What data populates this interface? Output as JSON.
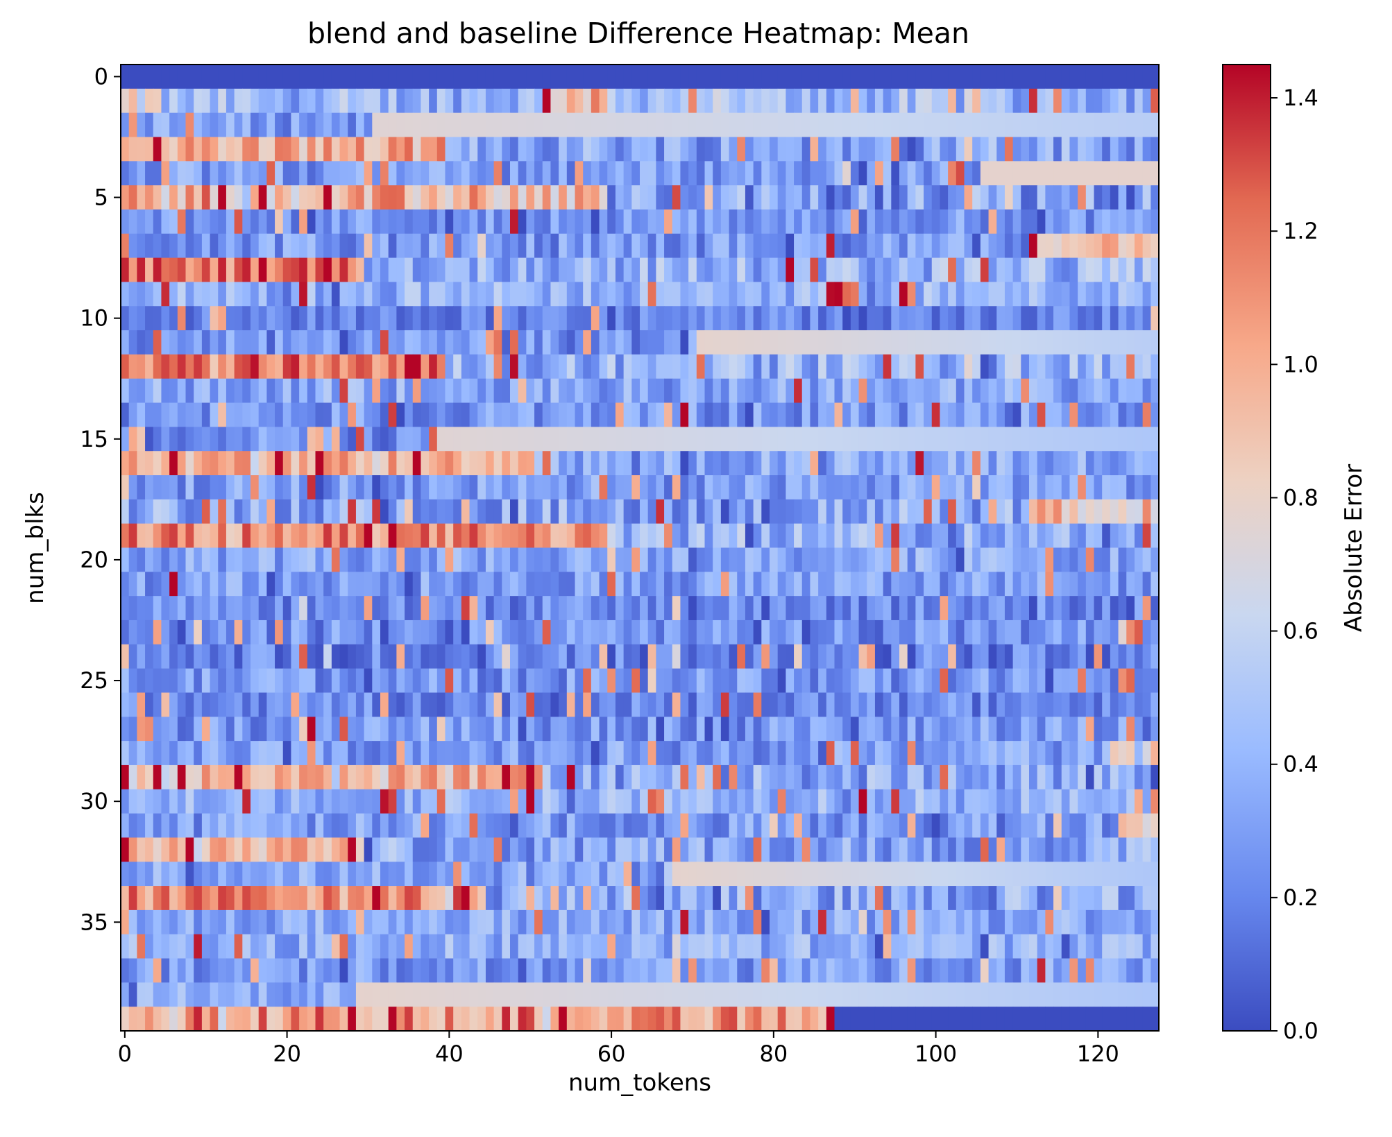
{
  "chart_data": {
    "type": "heatmap",
    "title": "blend and baseline Difference Heatmap: Mean",
    "xlabel": "num_tokens",
    "ylabel": "num_blks",
    "colorbar_label": "Absolute Error",
    "colormap": "coolwarm",
    "colormap_stops": [
      "#3b4cc0",
      "#6788ee",
      "#9abbff",
      "#c9d7f0",
      "#edd1c2",
      "#f7a889",
      "#e26952",
      "#b40426"
    ],
    "n_rows": 40,
    "n_cols": 128,
    "xticks": [
      0,
      20,
      40,
      60,
      80,
      100,
      120
    ],
    "yticks": [
      0,
      5,
      10,
      15,
      20,
      25,
      30,
      35
    ],
    "xticklabels": [
      "0",
      "20",
      "40",
      "60",
      "80",
      "100",
      "120"
    ],
    "yticklabels": [
      "0",
      "5",
      "10",
      "15",
      "20",
      "25",
      "30",
      "35"
    ],
    "colorbar_ticks": [
      "0.0",
      "0.2",
      "0.4",
      "0.6",
      "0.8",
      "1.0",
      "1.2",
      "1.4"
    ],
    "value_range": [
      0.0,
      1.45
    ],
    "grid": false,
    "rows": [
      {
        "row": 0,
        "base": 0.0,
        "noise": 0.0,
        "pattern": "constant"
      },
      {
        "row": 1,
        "base": 0.42,
        "noise": 0.25,
        "hot": [
          [
            0,
            5,
            0.7
          ],
          [
            52,
            60,
            0.95
          ],
          [
            60,
            80,
            0.5
          ],
          [
            104,
            106,
            0.9
          ]
        ]
      },
      {
        "row": 2,
        "base": 0.3,
        "noise": 0.2,
        "fill_from": 31,
        "fill_start": 0.75,
        "fill_end": 0.55
      },
      {
        "row": 3,
        "base": 1.0,
        "noise": 0.25,
        "hot": [
          [
            40,
            128,
            0.35
          ]
        ]
      },
      {
        "row": 4,
        "base": 0.3,
        "noise": 0.2,
        "fill_from": 106,
        "fill_start": 0.78,
        "fill_end": 0.78
      },
      {
        "row": 5,
        "base": 0.95,
        "noise": 0.3,
        "hot": [
          [
            60,
            128,
            0.3
          ]
        ]
      },
      {
        "row": 6,
        "base": 0.28,
        "noise": 0.18
      },
      {
        "row": 7,
        "base": 0.28,
        "noise": 0.2,
        "hot": [
          [
            112,
            128,
            0.95
          ]
        ]
      },
      {
        "row": 8,
        "base": 1.15,
        "noise": 0.25,
        "hot": [
          [
            30,
            128,
            0.4
          ]
        ]
      },
      {
        "row": 9,
        "base": 0.4,
        "noise": 0.2
      },
      {
        "row": 10,
        "base": 0.2,
        "noise": 0.15
      },
      {
        "row": 11,
        "base": 0.25,
        "noise": 0.2,
        "fill_from": 71,
        "fill_start": 0.78,
        "fill_end": 0.55
      },
      {
        "row": 12,
        "base": 1.2,
        "noise": 0.25,
        "hot": [
          [
            40,
            128,
            0.4
          ]
        ]
      },
      {
        "row": 13,
        "base": 0.35,
        "noise": 0.2
      },
      {
        "row": 14,
        "base": 0.28,
        "noise": 0.2,
        "spike": [
          69,
          1.45
        ]
      },
      {
        "row": 15,
        "base": 0.25,
        "noise": 0.2,
        "fill_from": 39,
        "fill_start": 0.75,
        "fill_end": 0.5
      },
      {
        "row": 16,
        "base": 1.0,
        "noise": 0.2,
        "hot": [
          [
            50,
            128,
            0.35
          ]
        ]
      },
      {
        "row": 17,
        "base": 0.3,
        "noise": 0.2
      },
      {
        "row": 18,
        "base": 0.35,
        "noise": 0.25,
        "hot": [
          [
            112,
            128,
            0.9
          ]
        ]
      },
      {
        "row": 19,
        "base": 1.1,
        "noise": 0.25,
        "hot": [
          [
            60,
            128,
            0.4
          ]
        ]
      },
      {
        "row": 20,
        "base": 0.35,
        "noise": 0.2
      },
      {
        "row": 21,
        "base": 0.3,
        "noise": 0.2
      },
      {
        "row": 22,
        "base": 0.22,
        "noise": 0.18
      },
      {
        "row": 23,
        "base": 0.25,
        "noise": 0.2
      },
      {
        "row": 24,
        "base": 0.2,
        "noise": 0.18
      },
      {
        "row": 25,
        "base": 0.28,
        "noise": 0.2
      },
      {
        "row": 26,
        "base": 0.22,
        "noise": 0.18
      },
      {
        "row": 27,
        "base": 0.28,
        "noise": 0.2
      },
      {
        "row": 28,
        "base": 0.3,
        "noise": 0.2,
        "hot": [
          [
            122,
            128,
            0.8
          ]
        ]
      },
      {
        "row": 29,
        "base": 0.95,
        "noise": 0.25,
        "hot": [
          [
            50,
            128,
            0.35
          ]
        ]
      },
      {
        "row": 30,
        "base": 0.4,
        "noise": 0.2
      },
      {
        "row": 31,
        "base": 0.3,
        "noise": 0.2,
        "hot": [
          [
            124,
            128,
            0.85
          ]
        ]
      },
      {
        "row": 32,
        "base": 1.0,
        "noise": 0.25,
        "hot": [
          [
            30,
            128,
            0.35
          ]
        ]
      },
      {
        "row": 33,
        "base": 0.35,
        "noise": 0.2,
        "fill_from": 68,
        "fill_start": 0.78,
        "fill_end": 0.5
      },
      {
        "row": 34,
        "base": 1.1,
        "noise": 0.25,
        "hot": [
          [
            45,
            128,
            0.35
          ]
        ]
      },
      {
        "row": 35,
        "base": 0.35,
        "noise": 0.2
      },
      {
        "row": 36,
        "base": 0.38,
        "noise": 0.2
      },
      {
        "row": 37,
        "base": 0.3,
        "noise": 0.2
      },
      {
        "row": 38,
        "base": 0.35,
        "noise": 0.2,
        "fill_from": 29,
        "fill_start": 0.78,
        "fill_end": 0.5
      },
      {
        "row": 39,
        "base": 1.1,
        "noise": 0.3,
        "zero_from": 88
      }
    ]
  }
}
